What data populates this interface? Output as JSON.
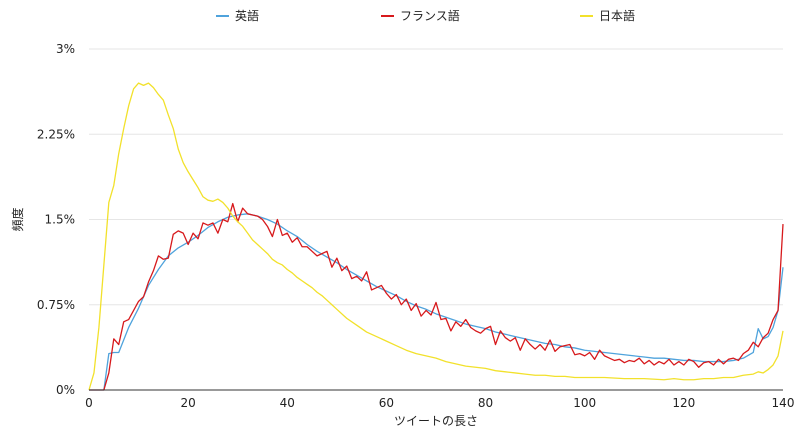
{
  "chart_data": {
    "type": "line",
    "title": "",
    "xlabel": "ツイートの長さ",
    "ylabel": "頻度",
    "xlim": [
      0,
      140
    ],
    "ylim": [
      0,
      3
    ],
    "grid": true,
    "legend_position": "top",
    "x_ticks": [
      {
        "value": 0,
        "label": "0"
      },
      {
        "value": 20,
        "label": "20"
      },
      {
        "value": 40,
        "label": "40"
      },
      {
        "value": 60,
        "label": "60"
      },
      {
        "value": 80,
        "label": "80"
      },
      {
        "value": 100,
        "label": "100"
      },
      {
        "value": 120,
        "label": "120"
      },
      {
        "value": 140,
        "label": "140"
      }
    ],
    "y_ticks": [
      {
        "value": 0,
        "label": "0%"
      },
      {
        "value": 0.75,
        "label": "0.75%"
      },
      {
        "value": 1.5,
        "label": "1.5%"
      },
      {
        "value": 2.25,
        "label": "2.25%"
      },
      {
        "value": 3,
        "label": "3%"
      }
    ],
    "series": [
      {
        "name": "英語",
        "color": "#4fa3dc",
        "points": [
          [
            0,
            0
          ],
          [
            3,
            0
          ],
          [
            4,
            0.32
          ],
          [
            5,
            0.33
          ],
          [
            6,
            0.33
          ],
          [
            8,
            0.55
          ],
          [
            10,
            0.72
          ],
          [
            12,
            0.92
          ],
          [
            14,
            1.06
          ],
          [
            16,
            1.18
          ],
          [
            18,
            1.25
          ],
          [
            20,
            1.3
          ],
          [
            22,
            1.36
          ],
          [
            24,
            1.43
          ],
          [
            26,
            1.48
          ],
          [
            28,
            1.52
          ],
          [
            30,
            1.54
          ],
          [
            32,
            1.55
          ],
          [
            34,
            1.53
          ],
          [
            36,
            1.5
          ],
          [
            38,
            1.46
          ],
          [
            40,
            1.4
          ],
          [
            42,
            1.35
          ],
          [
            44,
            1.28
          ],
          [
            46,
            1.22
          ],
          [
            48,
            1.17
          ],
          [
            50,
            1.12
          ],
          [
            52,
            1.06
          ],
          [
            54,
            1.01
          ],
          [
            56,
            0.96
          ],
          [
            58,
            0.91
          ],
          [
            60,
            0.87
          ],
          [
            62,
            0.83
          ],
          [
            64,
            0.78
          ],
          [
            66,
            0.74
          ],
          [
            68,
            0.71
          ],
          [
            70,
            0.67
          ],
          [
            72,
            0.64
          ],
          [
            74,
            0.61
          ],
          [
            76,
            0.58
          ],
          [
            78,
            0.56
          ],
          [
            80,
            0.54
          ],
          [
            82,
            0.51
          ],
          [
            84,
            0.49
          ],
          [
            86,
            0.47
          ],
          [
            88,
            0.45
          ],
          [
            90,
            0.43
          ],
          [
            92,
            0.41
          ],
          [
            94,
            0.4
          ],
          [
            96,
            0.38
          ],
          [
            98,
            0.37
          ],
          [
            100,
            0.35
          ],
          [
            102,
            0.34
          ],
          [
            104,
            0.33
          ],
          [
            106,
            0.32
          ],
          [
            108,
            0.31
          ],
          [
            110,
            0.3
          ],
          [
            112,
            0.29
          ],
          [
            114,
            0.28
          ],
          [
            116,
            0.28
          ],
          [
            118,
            0.27
          ],
          [
            120,
            0.26
          ],
          [
            122,
            0.26
          ],
          [
            124,
            0.25
          ],
          [
            126,
            0.25
          ],
          [
            128,
            0.25
          ],
          [
            130,
            0.26
          ],
          [
            132,
            0.28
          ],
          [
            134,
            0.33
          ],
          [
            135,
            0.54
          ],
          [
            136,
            0.45
          ],
          [
            137,
            0.47
          ],
          [
            138,
            0.55
          ],
          [
            139,
            0.7
          ],
          [
            140,
            1.08
          ]
        ]
      },
      {
        "name": "フランス語",
        "color": "#d7191c",
        "points": [
          [
            0,
            0
          ],
          [
            3,
            0
          ],
          [
            4,
            0.15
          ],
          [
            5,
            0.45
          ],
          [
            6,
            0.4
          ],
          [
            7,
            0.6
          ],
          [
            8,
            0.62
          ],
          [
            9,
            0.7
          ],
          [
            10,
            0.78
          ],
          [
            11,
            0.82
          ],
          [
            12,
            0.95
          ],
          [
            13,
            1.05
          ],
          [
            14,
            1.18
          ],
          [
            15,
            1.15
          ],
          [
            16,
            1.16
          ],
          [
            17,
            1.37
          ],
          [
            18,
            1.4
          ],
          [
            19,
            1.38
          ],
          [
            20,
            1.28
          ],
          [
            21,
            1.38
          ],
          [
            22,
            1.33
          ],
          [
            23,
            1.47
          ],
          [
            24,
            1.45
          ],
          [
            25,
            1.47
          ],
          [
            26,
            1.38
          ],
          [
            27,
            1.5
          ],
          [
            28,
            1.48
          ],
          [
            29,
            1.64
          ],
          [
            30,
            1.48
          ],
          [
            31,
            1.6
          ],
          [
            32,
            1.55
          ],
          [
            33,
            1.54
          ],
          [
            34,
            1.53
          ],
          [
            35,
            1.5
          ],
          [
            36,
            1.44
          ],
          [
            37,
            1.35
          ],
          [
            38,
            1.5
          ],
          [
            39,
            1.36
          ],
          [
            40,
            1.38
          ],
          [
            41,
            1.3
          ],
          [
            42,
            1.34
          ],
          [
            43,
            1.26
          ],
          [
            44,
            1.26
          ],
          [
            45,
            1.22
          ],
          [
            46,
            1.18
          ],
          [
            47,
            1.2
          ],
          [
            48,
            1.22
          ],
          [
            49,
            1.08
          ],
          [
            50,
            1.16
          ],
          [
            51,
            1.05
          ],
          [
            52,
            1.09
          ],
          [
            53,
            0.98
          ],
          [
            54,
            1.0
          ],
          [
            55,
            0.96
          ],
          [
            56,
            1.04
          ],
          [
            57,
            0.88
          ],
          [
            58,
            0.9
          ],
          [
            59,
            0.92
          ],
          [
            60,
            0.85
          ],
          [
            61,
            0.8
          ],
          [
            62,
            0.84
          ],
          [
            63,
            0.75
          ],
          [
            64,
            0.8
          ],
          [
            65,
            0.7
          ],
          [
            66,
            0.76
          ],
          [
            67,
            0.65
          ],
          [
            68,
            0.7
          ],
          [
            69,
            0.66
          ],
          [
            70,
            0.77
          ],
          [
            71,
            0.62
          ],
          [
            72,
            0.63
          ],
          [
            73,
            0.52
          ],
          [
            74,
            0.6
          ],
          [
            75,
            0.56
          ],
          [
            76,
            0.62
          ],
          [
            77,
            0.55
          ],
          [
            78,
            0.52
          ],
          [
            79,
            0.5
          ],
          [
            80,
            0.54
          ],
          [
            81,
            0.56
          ],
          [
            82,
            0.4
          ],
          [
            83,
            0.52
          ],
          [
            84,
            0.46
          ],
          [
            85,
            0.43
          ],
          [
            86,
            0.46
          ],
          [
            87,
            0.35
          ],
          [
            88,
            0.45
          ],
          [
            89,
            0.4
          ],
          [
            90,
            0.36
          ],
          [
            91,
            0.4
          ],
          [
            92,
            0.35
          ],
          [
            93,
            0.44
          ],
          [
            94,
            0.34
          ],
          [
            95,
            0.38
          ],
          [
            96,
            0.39
          ],
          [
            97,
            0.4
          ],
          [
            98,
            0.31
          ],
          [
            99,
            0.32
          ],
          [
            100,
            0.3
          ],
          [
            101,
            0.33
          ],
          [
            102,
            0.27
          ],
          [
            103,
            0.35
          ],
          [
            104,
            0.3
          ],
          [
            105,
            0.28
          ],
          [
            106,
            0.26
          ],
          [
            107,
            0.27
          ],
          [
            108,
            0.24
          ],
          [
            109,
            0.26
          ],
          [
            110,
            0.25
          ],
          [
            111,
            0.28
          ],
          [
            112,
            0.23
          ],
          [
            113,
            0.26
          ],
          [
            114,
            0.22
          ],
          [
            115,
            0.25
          ],
          [
            116,
            0.23
          ],
          [
            117,
            0.27
          ],
          [
            118,
            0.22
          ],
          [
            119,
            0.25
          ],
          [
            120,
            0.22
          ],
          [
            121,
            0.27
          ],
          [
            122,
            0.25
          ],
          [
            123,
            0.2
          ],
          [
            124,
            0.24
          ],
          [
            125,
            0.25
          ],
          [
            126,
            0.22
          ],
          [
            127,
            0.27
          ],
          [
            128,
            0.23
          ],
          [
            129,
            0.27
          ],
          [
            130,
            0.28
          ],
          [
            131,
            0.26
          ],
          [
            132,
            0.32
          ],
          [
            133,
            0.35
          ],
          [
            134,
            0.42
          ],
          [
            135,
            0.38
          ],
          [
            136,
            0.46
          ],
          [
            137,
            0.5
          ],
          [
            138,
            0.62
          ],
          [
            139,
            0.7
          ],
          [
            140,
            1.46
          ]
        ]
      },
      {
        "name": "日本語",
        "color": "#f2e12b",
        "points": [
          [
            0,
            0
          ],
          [
            1,
            0.15
          ],
          [
            2,
            0.55
          ],
          [
            3,
            1.1
          ],
          [
            4,
            1.65
          ],
          [
            5,
            1.8
          ],
          [
            6,
            2.08
          ],
          [
            7,
            2.3
          ],
          [
            8,
            2.5
          ],
          [
            9,
            2.65
          ],
          [
            10,
            2.7
          ],
          [
            11,
            2.68
          ],
          [
            12,
            2.7
          ],
          [
            13,
            2.66
          ],
          [
            14,
            2.6
          ],
          [
            15,
            2.55
          ],
          [
            16,
            2.42
          ],
          [
            17,
            2.3
          ],
          [
            18,
            2.12
          ],
          [
            19,
            2.0
          ],
          [
            20,
            1.92
          ],
          [
            21,
            1.85
          ],
          [
            22,
            1.78
          ],
          [
            23,
            1.7
          ],
          [
            24,
            1.67
          ],
          [
            25,
            1.66
          ],
          [
            26,
            1.68
          ],
          [
            27,
            1.65
          ],
          [
            28,
            1.6
          ],
          [
            29,
            1.53
          ],
          [
            30,
            1.48
          ],
          [
            31,
            1.44
          ],
          [
            32,
            1.38
          ],
          [
            33,
            1.32
          ],
          [
            34,
            1.28
          ],
          [
            35,
            1.24
          ],
          [
            36,
            1.2
          ],
          [
            37,
            1.15
          ],
          [
            38,
            1.12
          ],
          [
            39,
            1.1
          ],
          [
            40,
            1.06
          ],
          [
            41,
            1.03
          ],
          [
            42,
            0.99
          ],
          [
            43,
            0.96
          ],
          [
            44,
            0.93
          ],
          [
            45,
            0.9
          ],
          [
            46,
            0.86
          ],
          [
            47,
            0.83
          ],
          [
            48,
            0.79
          ],
          [
            49,
            0.75
          ],
          [
            50,
            0.71
          ],
          [
            52,
            0.63
          ],
          [
            54,
            0.57
          ],
          [
            56,
            0.51
          ],
          [
            58,
            0.47
          ],
          [
            60,
            0.43
          ],
          [
            62,
            0.39
          ],
          [
            64,
            0.35
          ],
          [
            66,
            0.32
          ],
          [
            68,
            0.3
          ],
          [
            70,
            0.28
          ],
          [
            72,
            0.25
          ],
          [
            74,
            0.23
          ],
          [
            76,
            0.21
          ],
          [
            78,
            0.2
          ],
          [
            80,
            0.19
          ],
          [
            82,
            0.17
          ],
          [
            84,
            0.16
          ],
          [
            86,
            0.15
          ],
          [
            88,
            0.14
          ],
          [
            90,
            0.13
          ],
          [
            92,
            0.13
          ],
          [
            94,
            0.12
          ],
          [
            96,
            0.12
          ],
          [
            98,
            0.11
          ],
          [
            100,
            0.11
          ],
          [
            104,
            0.11
          ],
          [
            108,
            0.1
          ],
          [
            112,
            0.1
          ],
          [
            116,
            0.09
          ],
          [
            118,
            0.1
          ],
          [
            120,
            0.09
          ],
          [
            122,
            0.09
          ],
          [
            124,
            0.1
          ],
          [
            126,
            0.1
          ],
          [
            128,
            0.11
          ],
          [
            130,
            0.11
          ],
          [
            132,
            0.13
          ],
          [
            134,
            0.14
          ],
          [
            135,
            0.16
          ],
          [
            136,
            0.15
          ],
          [
            137,
            0.18
          ],
          [
            138,
            0.22
          ],
          [
            139,
            0.3
          ],
          [
            140,
            0.52
          ]
        ]
      }
    ]
  }
}
